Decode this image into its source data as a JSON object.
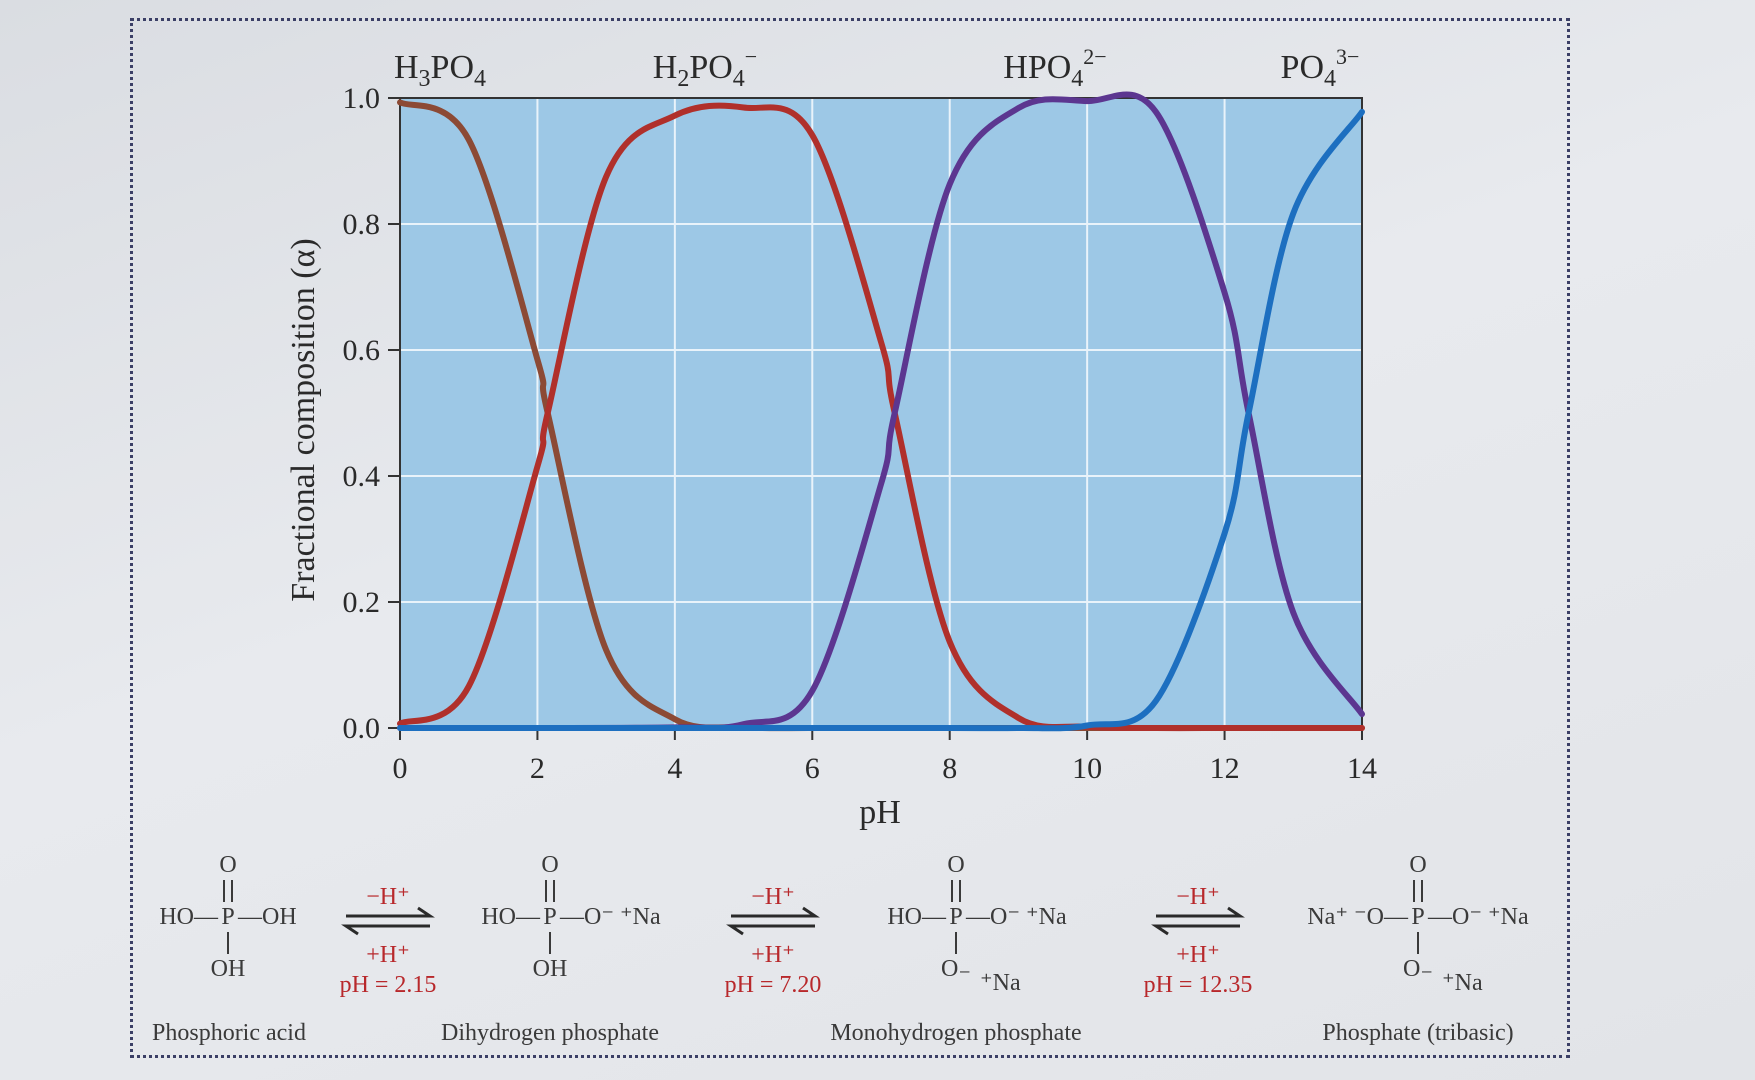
{
  "chart_data": {
    "type": "line",
    "xlabel": "pH",
    "ylabel": "Fractional composition (α)",
    "xlim": [
      0,
      14
    ],
    "ylim": [
      0,
      1
    ],
    "x_ticks": [
      "0",
      "2",
      "4",
      "6",
      "8",
      "10",
      "12",
      "14"
    ],
    "y_ticks": [
      "0.0",
      "0.2",
      "0.4",
      "0.6",
      "0.8",
      "1.0"
    ],
    "grid": true,
    "pKa": [
      2.15,
      7.2,
      12.35
    ],
    "series": [
      {
        "name_base": "H",
        "name_sub1": "3",
        "name_mid": "PO",
        "name_sub2": "4",
        "name_sup": "",
        "color": "#8c4a35",
        "x": [
          0,
          1,
          2,
          2.15,
          3,
          4,
          5,
          6,
          7,
          8,
          9,
          10,
          11,
          12,
          13,
          14
        ],
        "y": [
          0.993,
          0.934,
          0.585,
          0.5,
          0.124,
          0.014,
          0.001,
          0,
          0,
          0,
          0,
          0,
          0,
          0,
          0,
          0
        ]
      },
      {
        "name_base": "H",
        "name_sub1": "2",
        "name_mid": "PO",
        "name_sub2": "4",
        "name_sup": "−",
        "color": "#b0302b",
        "x": [
          0,
          1,
          2,
          2.15,
          3,
          4,
          5,
          6,
          7,
          7.2,
          8,
          9,
          10,
          11,
          12,
          13,
          14
        ],
        "y": [
          0.007,
          0.066,
          0.415,
          0.5,
          0.875,
          0.972,
          0.985,
          0.941,
          0.613,
          0.5,
          0.137,
          0.016,
          0.002,
          0,
          0,
          0,
          0
        ]
      },
      {
        "name_base": "HPO",
        "name_sub1": "",
        "name_mid": "",
        "name_sub2": "4",
        "name_sup": "2−",
        "color": "#5c3690",
        "x": [
          0,
          2,
          4,
          5,
          6,
          7,
          7.2,
          8,
          9,
          10,
          11,
          12,
          12.35,
          13,
          14
        ],
        "y": [
          0,
          0,
          0.001,
          0.006,
          0.059,
          0.387,
          0.5,
          0.863,
          0.984,
          0.995,
          0.978,
          0.691,
          0.5,
          0.183,
          0.022
        ]
      },
      {
        "name_base": "PO",
        "name_sub1": "",
        "name_mid": "",
        "name_sub2": "4",
        "name_sup": "3−",
        "color": "#1d6fc0",
        "x": [
          0,
          6,
          8,
          9,
          10,
          11,
          12,
          12.35,
          13,
          14
        ],
        "y": [
          0,
          0,
          0,
          0,
          0.004,
          0.043,
          0.309,
          0.5,
          0.817,
          0.978
        ]
      }
    ]
  },
  "equilibria": {
    "forward_label": "−H⁺",
    "reverse_label": "+H⁺",
    "steps": [
      {
        "ph_label": "pH = 2.15"
      },
      {
        "ph_label": "pH = 7.20"
      },
      {
        "ph_label": "pH = 12.35"
      }
    ]
  },
  "structures": [
    {
      "name": "Phosphoric acid",
      "top_o": "O",
      "left": "HO—",
      "p": "P",
      "right": "—OH",
      "bottom": "OH",
      "bottom_ion": ""
    },
    {
      "name": "Dihydrogen phosphate",
      "top_o": "O",
      "left": "HO—",
      "p": "P",
      "right": "—O⁻ ⁺Na",
      "bottom": "OH",
      "bottom_ion": ""
    },
    {
      "name": "Monohydrogen phosphate",
      "top_o": "O",
      "left": "HO—",
      "p": "P",
      "right": "—O⁻ ⁺Na",
      "bottom": "O₋",
      "bottom_ion": "⁺Na"
    },
    {
      "name": "Phosphate (tribasic)",
      "top_o": "O",
      "left": "Na⁺ ⁻O—",
      "p": "P",
      "right": "—O⁻ ⁺Na",
      "bottom": "O₋",
      "bottom_ion": "⁺Na"
    }
  ],
  "colors": {
    "plot_bg": "#9dc8e6",
    "grid": "#e9f3fa",
    "red_text": "#b8282b"
  }
}
